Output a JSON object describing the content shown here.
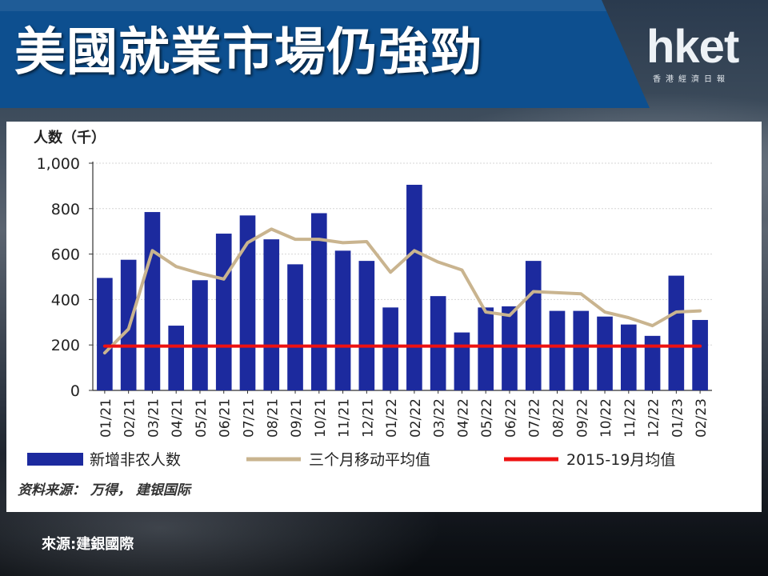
{
  "banner": {
    "title": "美國就業市場仍強勁",
    "logo_text": "hket",
    "logo_subtitle": "香港經濟日報",
    "background_color": "#0d4f8f"
  },
  "chart_data": {
    "type": "bar",
    "unit_label": "人数（千）",
    "categories": [
      "01/21",
      "02/21",
      "03/21",
      "04/21",
      "05/21",
      "06/21",
      "07/21",
      "08/21",
      "09/21",
      "10/21",
      "11/21",
      "12/21",
      "01/22",
      "02/22",
      "03/22",
      "04/22",
      "05/22",
      "06/22",
      "07/22",
      "08/22",
      "09/22",
      "10/22",
      "11/22",
      "12/22",
      "01/23",
      "02/23"
    ],
    "series": [
      {
        "name": "新增非农人数",
        "kind": "bar",
        "color": "#1c2a9e",
        "values": [
          495,
          575,
          785,
          285,
          485,
          690,
          770,
          665,
          555,
          780,
          615,
          570,
          365,
          905,
          415,
          255,
          365,
          370,
          570,
          350,
          350,
          325,
          290,
          240,
          505,
          310
        ]
      },
      {
        "name": "三个月移动平均值",
        "kind": "line",
        "color": "#c9b48f",
        "values": [
          165,
          270,
          615,
          545,
          515,
          490,
          650,
          710,
          665,
          665,
          650,
          655,
          520,
          615,
          565,
          530,
          345,
          330,
          435,
          430,
          425,
          345,
          320,
          285,
          345,
          350
        ]
      },
      {
        "name": "2015-19月均值",
        "kind": "line",
        "color": "#ee1111",
        "values": [
          195,
          195,
          195,
          195,
          195,
          195,
          195,
          195,
          195,
          195,
          195,
          195,
          195,
          195,
          195,
          195,
          195,
          195,
          195,
          195,
          195,
          195,
          195,
          195,
          195,
          195
        ]
      }
    ],
    "ylim": [
      0,
      1000
    ],
    "yticks": [
      0,
      200,
      400,
      600,
      800,
      1000
    ],
    "ytick_labels": [
      "0",
      "200",
      "400",
      "600",
      "800",
      "1,000"
    ],
    "grid": true,
    "legend_position": "bottom",
    "source": "资料来源： 万得， 建银国际"
  },
  "footer": {
    "source_note": "來源:建銀國際"
  }
}
